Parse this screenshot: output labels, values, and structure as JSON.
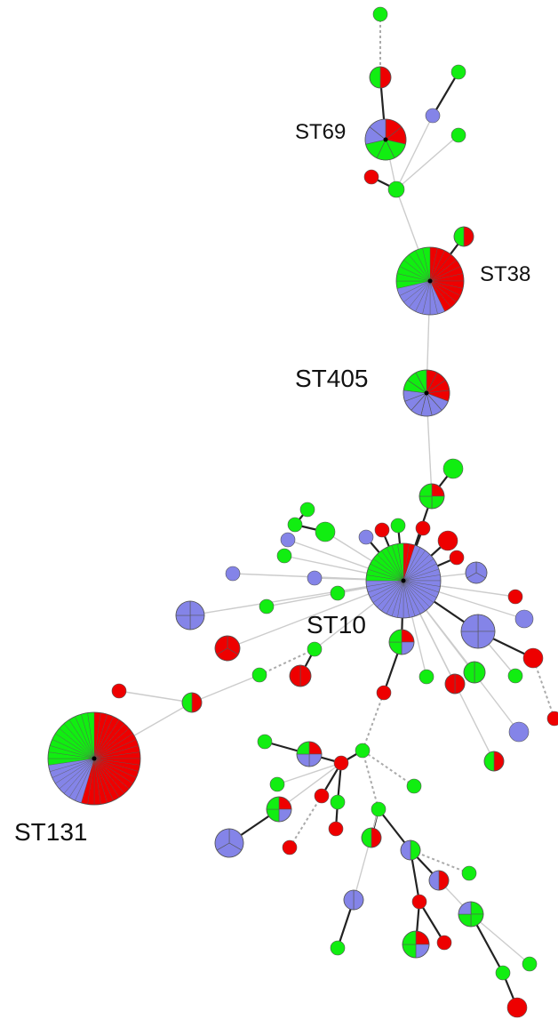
{
  "colors": {
    "red": "#ee0000",
    "green": "#11ee11",
    "blue": "#8484e8",
    "edge_strong": "#222222",
    "edge_faint": "#cccccc",
    "edge_dashed": "#aaaaaa",
    "outline": "#555555"
  },
  "labels": {
    "st69": "ST69",
    "st38": "ST38",
    "st405": "ST405",
    "st10": "ST10",
    "st131": "ST131"
  }
}
